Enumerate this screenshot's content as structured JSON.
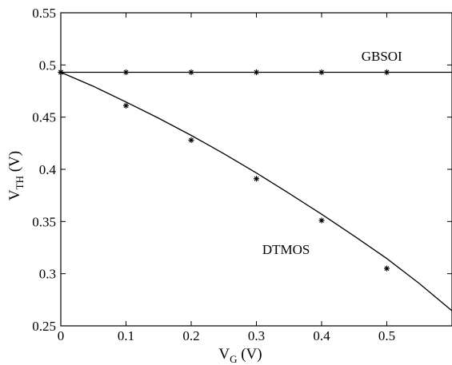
{
  "chart_data": {
    "type": "line",
    "xlabel": {
      "main": "V",
      "sub": "G",
      "rest": " (V)"
    },
    "ylabel": {
      "main": "V",
      "sub": "TH",
      "rest": " (V)"
    },
    "xlim": [
      0,
      0.6
    ],
    "ylim": [
      0.25,
      0.55
    ],
    "xticks": [
      0,
      0.1,
      0.2,
      0.3,
      0.4,
      0.5
    ],
    "xtick_labels": [
      "0",
      "0.1",
      "0.2",
      "0.3",
      "0.4",
      "0.5"
    ],
    "yticks": [
      0.25,
      0.3,
      0.35,
      0.4,
      0.45,
      0.5,
      0.55
    ],
    "ytick_labels": [
      "0.25",
      "0.3",
      "0.35",
      "0.4",
      "0.45",
      "0.5",
      "0.55"
    ],
    "grid": false,
    "legend": "none",
    "series": [
      {
        "name": "GBSOI",
        "line": {
          "x": [
            0,
            0.6
          ],
          "y": [
            0.493,
            0.493
          ]
        },
        "points": {
          "x": [
            0,
            0.1,
            0.2,
            0.3,
            0.4,
            0.5
          ],
          "y": [
            0.493,
            0.493,
            0.493,
            0.493,
            0.493,
            0.493
          ]
        }
      },
      {
        "name": "DTMOS",
        "line": {
          "x": [
            0,
            0.05,
            0.1,
            0.15,
            0.2,
            0.25,
            0.3,
            0.35,
            0.4,
            0.45,
            0.5,
            0.55,
            0.6
          ],
          "y": [
            0.493,
            0.4795,
            0.4645,
            0.449,
            0.4325,
            0.415,
            0.3965,
            0.377,
            0.357,
            0.336,
            0.3145,
            0.2905,
            0.2645
          ]
        },
        "points": {
          "x": [
            0,
            0.1,
            0.2,
            0.3,
            0.4,
            0.5
          ],
          "y": [
            0.493,
            0.461,
            0.428,
            0.391,
            0.351,
            0.305
          ]
        }
      }
    ],
    "annotations": [
      {
        "text": "GBSOI",
        "x": 0.461,
        "y": 0.504
      },
      {
        "text": "DTMOS",
        "x": 0.309,
        "y": 0.319
      }
    ],
    "colors": {
      "line": "#000000",
      "axis": "#000000"
    }
  }
}
